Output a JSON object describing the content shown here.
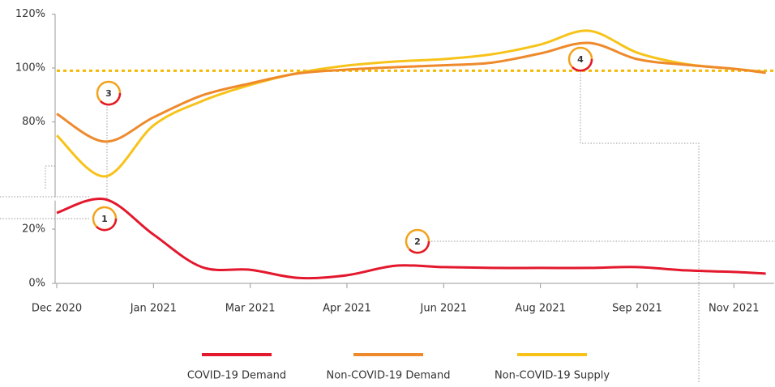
{
  "chart_data": {
    "type": "line",
    "x": [
      0,
      0.5,
      1,
      1.5,
      2,
      2.5,
      3,
      3.5,
      4,
      4.5,
      5,
      5.5,
      6,
      6.5,
      7,
      7.33
    ],
    "xlim": [
      0,
      7.4
    ],
    "xticks": [
      {
        "value": 0,
        "label": "Dec 2020"
      },
      {
        "value": 1,
        "label": "Jan 2021"
      },
      {
        "value": 2,
        "label": "Mar 2021"
      },
      {
        "value": 3,
        "label": "Apr 2021"
      },
      {
        "value": 4,
        "label": "Jun 2021"
      },
      {
        "value": 5,
        "label": "Aug 2021"
      },
      {
        "value": 6,
        "label": "Sep 2021"
      },
      {
        "value": 7,
        "label": "Nov 2021"
      }
    ],
    "ylim": [
      0,
      120
    ],
    "ybreak": [
      32,
      58
    ],
    "yticks": [
      {
        "value": 0,
        "label": "0%"
      },
      {
        "value": 20,
        "label": "20%"
      },
      {
        "value": 80,
        "label": "80%"
      },
      {
        "value": 100,
        "label": "100%"
      },
      {
        "value": 120,
        "label": "120%"
      }
    ],
    "reference_line": {
      "value": 99,
      "color": "#f5b800"
    },
    "series": [
      {
        "name": "COVID-19 Demand",
        "color": "#e3182d",
        "values": [
          26,
          31,
          18,
          6,
          5,
          2,
          3,
          6.5,
          6,
          5.7,
          5.7,
          5.7,
          6,
          4.8,
          4.2,
          3.6
        ]
      },
      {
        "name": "Non-COVID-19 Demand",
        "color": "#ee8a2c",
        "values": [
          83,
          72.7,
          81.7,
          89.8,
          94.3,
          98,
          99.4,
          100.3,
          101,
          102,
          105.4,
          109.3,
          103.3,
          101.2,
          99.7,
          98.2
        ]
      },
      {
        "name": "Non-COVID-19 Supply",
        "color": "#f7c31a",
        "values": [
          75,
          59.8,
          78.7,
          87.7,
          93.7,
          98.2,
          100.9,
          102.4,
          103.3,
          105.1,
          108.7,
          113.8,
          105.7,
          101.5,
          99.7,
          98.5
        ]
      }
    ],
    "annotations": [
      "1",
      "2",
      "3",
      "4"
    ]
  }
}
